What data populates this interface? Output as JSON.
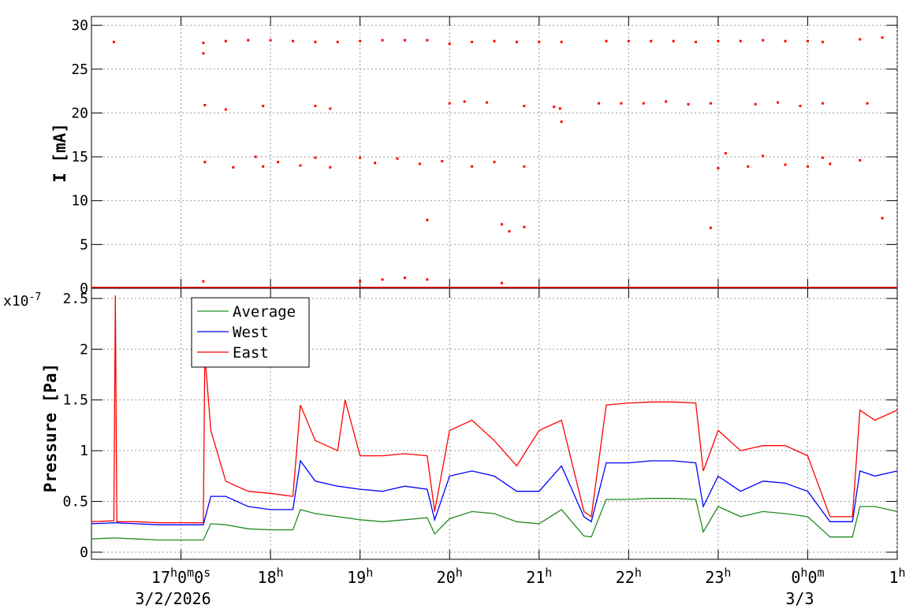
{
  "chart_data": [
    {
      "type": "scatter",
      "ylabel": "I [mA]",
      "ylim": [
        0,
        31
      ],
      "yticks": [
        "0",
        "5",
        "10",
        "15",
        "20",
        "25",
        "30"
      ],
      "grid": true,
      "color": "#ff0000",
      "time_range": [
        "2026-03-02 16:00",
        "2026-03-03 01:00"
      ],
      "series": [
        {
          "values": [
            [
              "16:15",
              28.1
            ],
            [
              "17:15",
              28.0
            ],
            [
              "17:15",
              26.8
            ],
            [
              "17:16",
              20.9
            ],
            [
              "17:16",
              14.4
            ],
            [
              "17:15",
              0.8
            ],
            [
              "17:30",
              28.2
            ],
            [
              "17:45",
              28.3
            ],
            [
              "18:00",
              28.3
            ],
            [
              "18:15",
              28.2
            ],
            [
              "18:30",
              28.1
            ],
            [
              "18:45",
              28.1
            ],
            [
              "19:00",
              28.2
            ],
            [
              "19:15",
              28.3
            ],
            [
              "19:30",
              28.3
            ],
            [
              "19:45",
              28.3
            ],
            [
              "20:00",
              27.9
            ],
            [
              "20:15",
              28.1
            ],
            [
              "20:30",
              28.2
            ],
            [
              "20:45",
              28.1
            ],
            [
              "21:00",
              28.1
            ],
            [
              "21:15",
              28.1
            ],
            [
              "21:45",
              28.2
            ],
            [
              "22:00",
              28.2
            ],
            [
              "22:15",
              28.2
            ],
            [
              "22:30",
              28.2
            ],
            [
              "22:45",
              28.1
            ],
            [
              "23:00",
              28.2
            ],
            [
              "23:15",
              28.2
            ],
            [
              "23:30",
              28.3
            ],
            [
              "23:45",
              28.2
            ],
            [
              "00:00",
              28.2
            ],
            [
              "00:10",
              28.1
            ],
            [
              "00:35",
              28.4
            ],
            [
              "00:50",
              28.6
            ],
            [
              "17:30",
              20.4
            ],
            [
              "17:55",
              20.8
            ],
            [
              "18:30",
              20.8
            ],
            [
              "18:40",
              20.5
            ],
            [
              "20:00",
              21.1
            ],
            [
              "20:10",
              21.3
            ],
            [
              "20:25",
              21.2
            ],
            [
              "20:50",
              20.8
            ],
            [
              "21:10",
              20.7
            ],
            [
              "21:40",
              21.1
            ],
            [
              "21:55",
              21.1
            ],
            [
              "22:10",
              21.1
            ],
            [
              "22:25",
              21.3
            ],
            [
              "22:40",
              21.0
            ],
            [
              "22:55",
              21.1
            ],
            [
              "23:25",
              21.0
            ],
            [
              "23:40",
              21.2
            ],
            [
              "23:55",
              20.8
            ],
            [
              "00:10",
              21.1
            ],
            [
              "00:40",
              21.1
            ],
            [
              "17:35",
              13.8
            ],
            [
              "17:50",
              15.0
            ],
            [
              "17:55",
              13.9
            ],
            [
              "18:05",
              14.4
            ],
            [
              "18:20",
              14.0
            ],
            [
              "18:30",
              14.9
            ],
            [
              "18:40",
              13.8
            ],
            [
              "19:00",
              14.9
            ],
            [
              "19:10",
              14.3
            ],
            [
              "19:25",
              14.8
            ],
            [
              "19:40",
              14.2
            ],
            [
              "19:55",
              14.5
            ],
            [
              "20:15",
              13.9
            ],
            [
              "20:30",
              14.4
            ],
            [
              "20:50",
              13.9
            ],
            [
              "23:00",
              13.7
            ],
            [
              "23:05",
              15.4
            ],
            [
              "23:20",
              13.9
            ],
            [
              "23:30",
              15.1
            ],
            [
              "23:45",
              14.1
            ],
            [
              "00:00",
              13.9
            ],
            [
              "00:10",
              14.9
            ],
            [
              "00:15",
              14.2
            ],
            [
              "00:35",
              14.6
            ],
            [
              "19:45",
              7.8
            ],
            [
              "20:35",
              7.3
            ],
            [
              "20:40",
              6.5
            ],
            [
              "20:50",
              7.0
            ],
            [
              "22:55",
              6.9
            ],
            [
              "00:50",
              8.0
            ],
            [
              "19:00",
              0.8
            ],
            [
              "19:15",
              1.0
            ],
            [
              "19:30",
              1.2
            ],
            [
              "19:45",
              1.0
            ],
            [
              "20:35",
              0.6
            ],
            [
              "21:14",
              20.5
            ],
            [
              "21:15",
              19.0
            ]
          ]
        }
      ]
    },
    {
      "type": "line",
      "ylabel": "Pressure [Pa]",
      "ylim": [
        -0.07,
        2.6
      ],
      "yticks": [
        "0",
        "0.5",
        "1",
        "1.5",
        "2",
        "2.5"
      ],
      "multiplier": "x10",
      "multiplier_exp": "-7",
      "grid": true,
      "legend_position": "top-left",
      "time_range": [
        "2026-03-02 16:00",
        "2026-03-03 01:00"
      ],
      "series": [
        {
          "name": "Average",
          "color": "#228b22",
          "times": [
            "16:00",
            "16:15",
            "16:30",
            "16:45",
            "17:00",
            "17:15",
            "17:20",
            "17:30",
            "17:45",
            "18:00",
            "18:15",
            "18:20",
            "18:30",
            "18:45",
            "19:00",
            "19:15",
            "19:30",
            "19:45",
            "19:50",
            "20:00",
            "20:15",
            "20:30",
            "20:45",
            "21:00",
            "21:15",
            "21:30",
            "21:35",
            "21:45",
            "22:00",
            "22:15",
            "22:30",
            "22:45",
            "22:50",
            "23:00",
            "23:15",
            "23:30",
            "23:45",
            "00:00",
            "00:15",
            "00:30",
            "00:35",
            "00:45",
            "01:00"
          ],
          "values": [
            0.13,
            0.14,
            0.13,
            0.12,
            0.12,
            0.12,
            0.28,
            0.27,
            0.23,
            0.22,
            0.22,
            0.42,
            0.38,
            0.35,
            0.32,
            0.3,
            0.32,
            0.34,
            0.18,
            0.33,
            0.4,
            0.38,
            0.3,
            0.28,
            0.42,
            0.16,
            0.15,
            0.52,
            0.52,
            0.53,
            0.53,
            0.52,
            0.2,
            0.45,
            0.35,
            0.4,
            0.38,
            0.35,
            0.15,
            0.15,
            0.45,
            0.45,
            0.4
          ]
        },
        {
          "name": "West",
          "color": "#0000ff",
          "times": [
            "16:00",
            "16:15",
            "16:30",
            "16:45",
            "17:00",
            "17:15",
            "17:20",
            "17:30",
            "17:45",
            "18:00",
            "18:15",
            "18:20",
            "18:30",
            "18:45",
            "19:00",
            "19:15",
            "19:30",
            "19:45",
            "19:50",
            "20:00",
            "20:15",
            "20:30",
            "20:45",
            "21:00",
            "21:15",
            "21:30",
            "21:35",
            "21:45",
            "22:00",
            "22:15",
            "22:30",
            "22:45",
            "22:50",
            "23:00",
            "23:15",
            "23:30",
            "23:45",
            "00:00",
            "00:15",
            "00:30",
            "00:35",
            "00:45",
            "01:00"
          ],
          "values": [
            0.28,
            0.29,
            0.28,
            0.27,
            0.27,
            0.27,
            0.55,
            0.55,
            0.45,
            0.42,
            0.42,
            0.9,
            0.7,
            0.65,
            0.62,
            0.6,
            0.65,
            0.62,
            0.32,
            0.75,
            0.8,
            0.75,
            0.6,
            0.6,
            0.85,
            0.35,
            0.3,
            0.88,
            0.88,
            0.9,
            0.9,
            0.88,
            0.45,
            0.75,
            0.6,
            0.7,
            0.68,
            0.6,
            0.3,
            0.3,
            0.8,
            0.75,
            0.8
          ]
        },
        {
          "name": "East",
          "color": "#ff0000",
          "times": [
            "16:00",
            "16:15",
            "16:16",
            "16:17",
            "16:30",
            "16:45",
            "17:00",
            "17:15",
            "17:16",
            "17:20",
            "17:30",
            "17:45",
            "18:00",
            "18:15",
            "18:20",
            "18:30",
            "18:45",
            "18:50",
            "19:00",
            "19:15",
            "19:30",
            "19:45",
            "19:50",
            "20:00",
            "20:15",
            "20:30",
            "20:45",
            "21:00",
            "21:15",
            "21:30",
            "21:35",
            "21:45",
            "22:00",
            "22:15",
            "22:30",
            "22:45",
            "22:50",
            "23:00",
            "23:15",
            "23:30",
            "23:45",
            "00:00",
            "00:15",
            "00:30",
            "00:35",
            "00:45",
            "01:00"
          ],
          "values": [
            0.3,
            0.31,
            2.53,
            0.3,
            0.3,
            0.29,
            0.29,
            0.29,
            1.95,
            1.2,
            0.7,
            0.6,
            0.58,
            0.55,
            1.45,
            1.1,
            1.0,
            1.5,
            0.95,
            0.95,
            0.97,
            0.95,
            0.4,
            1.2,
            1.3,
            1.1,
            0.85,
            1.2,
            1.3,
            0.4,
            0.35,
            1.45,
            1.47,
            1.48,
            1.48,
            1.47,
            0.8,
            1.2,
            1.0,
            1.05,
            1.05,
            0.95,
            0.35,
            0.35,
            1.4,
            1.3,
            1.4
          ]
        }
      ]
    }
  ],
  "x_axis": {
    "ticks": [
      {
        "time": "17:00",
        "main": "17",
        "sup1": "h",
        "mid": "0",
        "sup2": "m",
        "tail": "0",
        "sup3": "s"
      },
      {
        "time": "18:00",
        "main": "18",
        "sup1": "h"
      },
      {
        "time": "19:00",
        "main": "19",
        "sup1": "h"
      },
      {
        "time": "20:00",
        "main": "20",
        "sup1": "h"
      },
      {
        "time": "21:00",
        "main": "21",
        "sup1": "h"
      },
      {
        "time": "22:00",
        "main": "22",
        "sup1": "h"
      },
      {
        "time": "23:00",
        "main": "23",
        "sup1": "h"
      },
      {
        "time": "00:00",
        "main": "0",
        "sup1": "h",
        "mid": "0",
        "sup2": "m"
      },
      {
        "time": "01:00",
        "main": "1",
        "sup1": "h"
      }
    ],
    "dates": [
      {
        "time": "17:00",
        "text": "3/2/2026"
      },
      {
        "time": "00:00",
        "text": "3/3"
      }
    ]
  }
}
